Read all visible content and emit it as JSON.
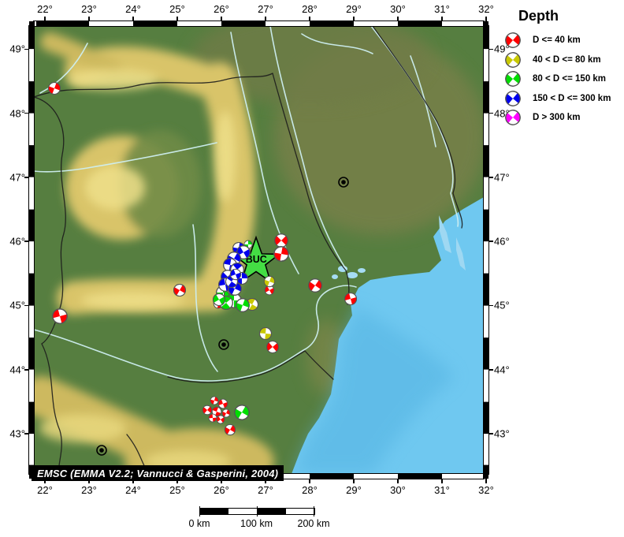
{
  "legend": {
    "title": "Depth",
    "items": [
      {
        "label": "D <= 40 km",
        "color": "#ff0000"
      },
      {
        "label": "40 < D <= 80 km",
        "color": "#c8c800"
      },
      {
        "label": "80 < D <= 150 km",
        "color": "#00dd00"
      },
      {
        "label": "150 < D <= 300 km",
        "color": "#0000ee"
      },
      {
        "label": "D > 300 km",
        "color": "#ff00ff"
      }
    ]
  },
  "axes": {
    "lon_labels": [
      "22°",
      "23°",
      "24°",
      "25°",
      "26°",
      "27°",
      "28°",
      "29°",
      "30°",
      "31°",
      "32°"
    ],
    "lat_labels": [
      "49°",
      "48°",
      "47°",
      "46°",
      "45°",
      "44°",
      "43°"
    ]
  },
  "attribution": "EMSC (EMMA V2.2; Vannucci & Gasperini, 2004)",
  "scalebar": {
    "labels": [
      "0 km",
      "100 km",
      "200 km"
    ]
  },
  "star": {
    "label": "BUC",
    "lon": 26.79,
    "lat": 45.68
  },
  "cities": [
    {
      "lon": 28.77,
      "lat": 46.92
    },
    {
      "lon": 26.06,
      "lat": 44.39
    },
    {
      "lon": 23.29,
      "lat": 42.74
    }
  ],
  "events": [
    {
      "lon": 22.22,
      "lat": 48.39,
      "band": 0,
      "r": 9,
      "rot": 20
    },
    {
      "lon": 22.34,
      "lat": 44.83,
      "band": 0,
      "r": 11,
      "rot": 75
    },
    {
      "lon": 25.06,
      "lat": 45.24,
      "band": 0,
      "r": 9,
      "rot": 30
    },
    {
      "lon": 25.93,
      "lat": 45.03,
      "band": 0,
      "r": 7,
      "rot": 100
    },
    {
      "lon": 27.36,
      "lat": 46.02,
      "band": 0,
      "r": 10,
      "rot": 45
    },
    {
      "lon": 27.36,
      "lat": 45.8,
      "band": 0,
      "r": 11,
      "rot": 10
    },
    {
      "lon": 27.09,
      "lat": 45.24,
      "band": 0,
      "r": 7,
      "rot": 60
    },
    {
      "lon": 28.13,
      "lat": 45.31,
      "band": 0,
      "r": 10,
      "rot": 35
    },
    {
      "lon": 28.93,
      "lat": 45.11,
      "band": 0,
      "r": 9,
      "rot": 75
    },
    {
      "lon": 27.16,
      "lat": 44.36,
      "band": 0,
      "r": 9,
      "rot": 50
    },
    {
      "lon": 25.84,
      "lat": 43.52,
      "band": 0,
      "r": 6,
      "rot": 15
    },
    {
      "lon": 26.04,
      "lat": 43.47,
      "band": 0,
      "r": 7,
      "rot": 70
    },
    {
      "lon": 25.68,
      "lat": 43.37,
      "band": 0,
      "r": 7,
      "rot": 40
    },
    {
      "lon": 25.9,
      "lat": 43.35,
      "band": 0,
      "r": 7,
      "rot": 110
    },
    {
      "lon": 26.11,
      "lat": 43.32,
      "band": 0,
      "r": 6,
      "rot": 25
    },
    {
      "lon": 25.81,
      "lat": 43.25,
      "band": 0,
      "r": 6,
      "rot": 85
    },
    {
      "lon": 25.99,
      "lat": 43.22,
      "band": 0,
      "r": 6,
      "rot": 55
    },
    {
      "lon": 26.2,
      "lat": 43.06,
      "band": 0,
      "r": 8,
      "rot": 30
    },
    {
      "lon": 26.7,
      "lat": 45.02,
      "band": 1,
      "r": 9,
      "rot": 120
    },
    {
      "lon": 27.09,
      "lat": 45.37,
      "band": 1,
      "r": 8,
      "rot": 20
    },
    {
      "lon": 27.0,
      "lat": 44.56,
      "band": 1,
      "r": 9,
      "rot": 95
    },
    {
      "lon": 26.04,
      "lat": 45.2,
      "band": 2,
      "r": 10,
      "rot": 0
    },
    {
      "lon": 26.2,
      "lat": 45.18,
      "band": 2,
      "r": 9,
      "rot": 40
    },
    {
      "lon": 26.29,
      "lat": 45.08,
      "band": 2,
      "r": 11,
      "rot": 90
    },
    {
      "lon": 26.11,
      "lat": 45.04,
      "band": 2,
      "r": 10,
      "rot": 140
    },
    {
      "lon": 25.95,
      "lat": 45.09,
      "band": 2,
      "r": 9,
      "rot": 60
    },
    {
      "lon": 26.49,
      "lat": 45.01,
      "band": 2,
      "r": 10,
      "rot": 20
    },
    {
      "lon": 26.27,
      "lat": 45.25,
      "band": 2,
      "r": 9,
      "rot": 110
    },
    {
      "lon": 26.61,
      "lat": 45.95,
      "band": 2,
      "r": 6,
      "rot": 0
    },
    {
      "lon": 26.47,
      "lat": 43.33,
      "band": 2,
      "r": 11,
      "rot": 30
    },
    {
      "lon": 26.4,
      "lat": 45.89,
      "band": 3,
      "r": 9,
      "rot": 10
    },
    {
      "lon": 26.5,
      "lat": 45.83,
      "band": 3,
      "r": 10,
      "rot": 60
    },
    {
      "lon": 26.29,
      "lat": 45.73,
      "band": 3,
      "r": 10,
      "rot": 30
    },
    {
      "lon": 26.2,
      "lat": 45.63,
      "band": 3,
      "r": 10,
      "rot": 100
    },
    {
      "lon": 26.36,
      "lat": 45.56,
      "band": 3,
      "r": 10,
      "rot": 140
    },
    {
      "lon": 26.15,
      "lat": 45.45,
      "band": 3,
      "r": 10,
      "rot": 45
    },
    {
      "lon": 26.47,
      "lat": 45.43,
      "band": 3,
      "r": 9,
      "rot": 0
    },
    {
      "lon": 26.09,
      "lat": 45.32,
      "band": 3,
      "r": 10,
      "rot": 80
    },
    {
      "lon": 26.31,
      "lat": 45.26,
      "band": 3,
      "r": 10,
      "rot": 25
    },
    {
      "lon": 26.23,
      "lat": 45.37,
      "band": 3,
      "r": 9,
      "rot": 125
    },
    {
      "lon": 26.33,
      "lat": 45.48,
      "band": 3,
      "r": 8,
      "rot": 70
    }
  ]
}
